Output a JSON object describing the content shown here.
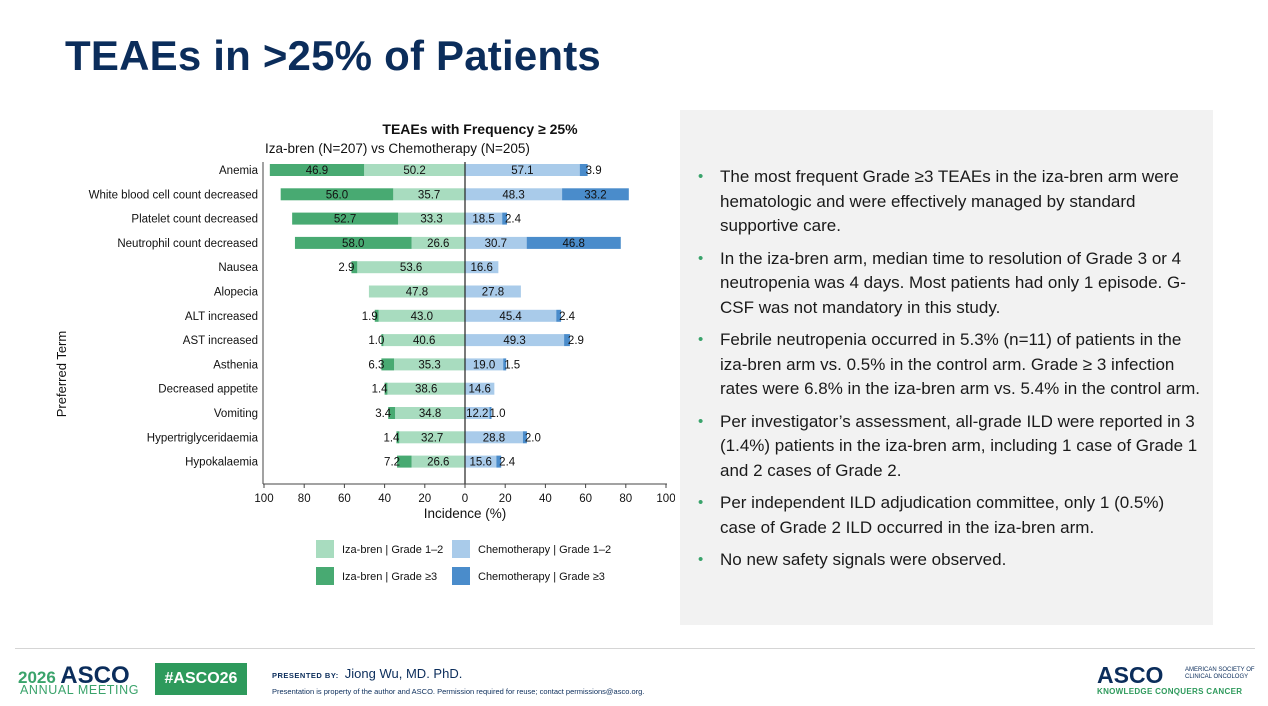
{
  "slide": {
    "title": "TEAEs in >25% of Patients"
  },
  "chart_data": {
    "type": "bar",
    "title": "TEAEs with Frequency ≥ 25%",
    "subtitle": "Iza-bren (N=207) vs Chemotherapy (N=205)",
    "xlabel": "Incidence (%)",
    "ylabel": "Preferred Term",
    "xticks": [
      "100",
      "80",
      "60",
      "40",
      "20",
      "0",
      "20",
      "40",
      "60",
      "80",
      "100"
    ],
    "xlim": [
      -100,
      100
    ],
    "categories": [
      "Anemia",
      "White blood cell count decreased",
      "Platelet count decreased",
      "Neutrophil count decreased",
      "Nausea",
      "Alopecia",
      "ALT increased",
      "AST increased",
      "Asthenia",
      "Decreased appetite",
      "Vomiting",
      "Hypertriglyceridaemia",
      "Hypokalaemia"
    ],
    "series": [
      {
        "name": "Iza-bren | Grade 1–2",
        "color": "#a8dcbf",
        "values": [
          50.2,
          35.7,
          33.3,
          26.6,
          53.6,
          47.8,
          43.0,
          40.6,
          35.3,
          38.6,
          34.8,
          32.7,
          26.6
        ],
        "labels": [
          "50.2",
          "35.7",
          "33.3",
          "26.6",
          "53.6",
          "47.8",
          "43.0",
          "40.6",
          "35.3",
          "38.6",
          "34.8",
          "32.7",
          "26.6"
        ]
      },
      {
        "name": "Iza-bren | Grade ≥3",
        "color": "#48aa72",
        "values": [
          46.9,
          56.0,
          52.7,
          58.0,
          2.9,
          0,
          1.9,
          1.0,
          6.3,
          1.4,
          3.4,
          1.4,
          7.2
        ],
        "labels": [
          "46.9",
          "56.0",
          "52.7",
          "58.0",
          "2.9",
          "",
          "1.9",
          "1.0",
          "6.3",
          "1.4",
          "3.4",
          "1.4",
          "7.2"
        ]
      },
      {
        "name": "Chemotherapy | Grade 1–2",
        "color": "#a9cbea",
        "values": [
          57.1,
          48.3,
          18.5,
          30.7,
          16.6,
          27.8,
          45.4,
          49.3,
          19.0,
          14.6,
          12.2,
          28.8,
          15.6
        ],
        "labels": [
          "57.1",
          "48.3",
          "18.5",
          "30.7",
          "16.6",
          "27.8",
          "45.4",
          "49.3",
          "19.0",
          "14.6",
          "12.2",
          "28.8",
          "15.6"
        ]
      },
      {
        "name": "Chemotherapy | Grade ≥3",
        "color": "#4a8ccb",
        "values": [
          3.9,
          33.2,
          2.4,
          46.8,
          0,
          0,
          2.4,
          2.9,
          1.5,
          0,
          1.0,
          2.0,
          2.4
        ],
        "labels": [
          "3.9",
          "33.2",
          "2.4",
          "46.8",
          "",
          "",
          "2.4",
          "2.9",
          "1.5",
          "",
          "1.0",
          "2.0",
          "2.4"
        ]
      }
    ],
    "legend": [
      "Iza-bren | Grade 1–2",
      "Chemotherapy | Grade 1–2",
      "Iza-bren | Grade ≥3",
      "Chemotherapy | Grade ≥3"
    ],
    "legend_position": "bottom"
  },
  "bullets": [
    "The most frequent Grade ≥3 TEAEs in the iza-bren arm were hematologic and were effectively managed by standard supportive care.",
    "In the iza-bren arm, median time to resolution of Grade 3 or 4 neutropenia was 4 days. Most patients had only 1 episode. G-CSF was not mandatory in this study.",
    "Febrile neutropenia occurred in 5.3% (n=11) of patients in the iza-bren arm vs. 0.5% in the control arm. Grade ≥ 3 infection rates were 6.8% in the iza-bren arm vs. 5.4% in the control arm.",
    "Per investigator’s assessment, all-grade ILD were reported in 3 (1.4%) patients in the iza-bren arm, including 1 case of Grade 1 and 2 cases of Grade 2.",
    "Per independent ILD adjudication committee, only 1 (0.5%) case of Grade 2 ILD occurred in the iza-bren arm.",
    "No new safety signals were observed."
  ],
  "bullet_marker": "•",
  "footer": {
    "meeting_year": "2026",
    "meeting_org": "ASCO",
    "meeting_name": "ANNUAL MEETING",
    "hashtag": "#ASCO26",
    "presented_by_label": "PRESENTED BY:",
    "presenter": "Jiong Wu, MD. PhD.",
    "disclaimer": "Presentation is property of the author and ASCO. Permission required for reuse; contact permissions@asco.org.",
    "org_logo": "ASCO",
    "org_fullname": "AMERICAN SOCIETY OF CLINICAL ONCOLOGY",
    "org_tagline": "KNOWLEDGE CONQUERS CANCER"
  }
}
